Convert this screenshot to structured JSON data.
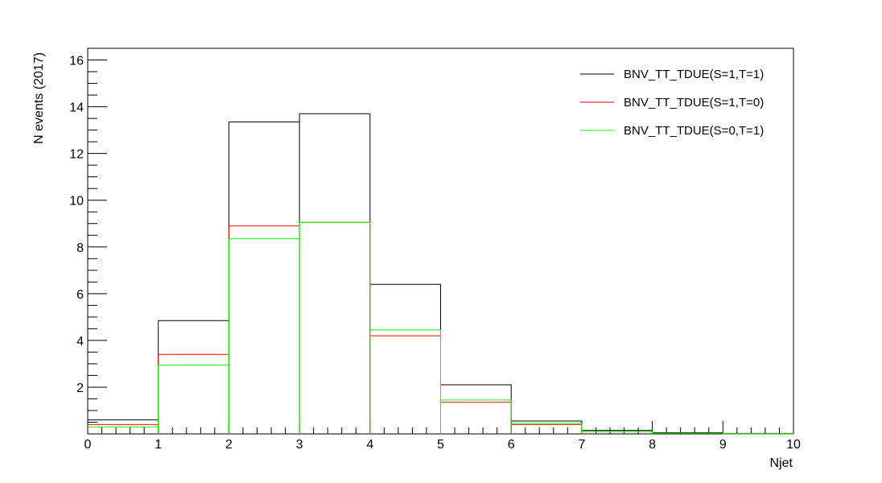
{
  "chart_data": {
    "type": "line",
    "step": true,
    "title": "",
    "xlabel": "Njet",
    "ylabel": "N events (2017)",
    "xlim": [
      0,
      10
    ],
    "ylim": [
      0,
      16.5
    ],
    "x_ticks": [
      "0",
      "1",
      "2",
      "3",
      "4",
      "5",
      "6",
      "7",
      "8",
      "9",
      "10"
    ],
    "y_ticks": [
      "2",
      "4",
      "6",
      "8",
      "10",
      "12",
      "14",
      "16"
    ],
    "grid": false,
    "legend_position": "top-right",
    "bin_edges": [
      0,
      1,
      2,
      3,
      4,
      5,
      6,
      7,
      8,
      9,
      10
    ],
    "series": [
      {
        "name": "BNV_TT_TDUE(S=1,T=1)",
        "color": "#000000",
        "values": [
          0.6,
          4.85,
          13.35,
          13.7,
          6.4,
          2.1,
          0.55,
          0.15,
          0.05,
          0.02
        ]
      },
      {
        "name": "BNV_TT_TDUE(S=1,T=0)",
        "color": "#ff0000",
        "values": [
          0.4,
          3.4,
          8.9,
          9.05,
          4.2,
          1.35,
          0.4,
          0.1,
          0.03,
          0.01
        ]
      },
      {
        "name": "BNV_TT_TDUE(S=0,T=1)",
        "color": "#00ff00",
        "values": [
          0.3,
          2.95,
          8.35,
          9.05,
          4.45,
          1.45,
          0.45,
          0.1,
          0.03,
          0.01
        ]
      }
    ]
  }
}
